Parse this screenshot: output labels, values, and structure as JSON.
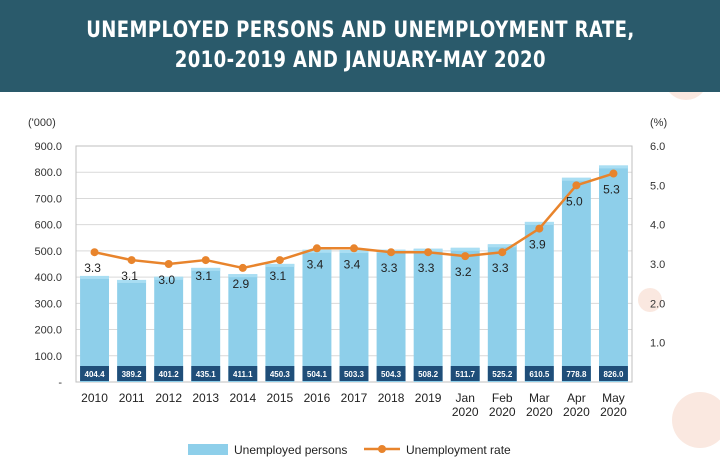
{
  "chart_data": {
    "type": "bar",
    "title": "UNEMPLOYED PERSONS AND UNEMPLOYMENT RATE,",
    "subtitle": "2010-2019 AND JANUARY-MAY 2020",
    "y_unit_left": "('000)",
    "y_unit_right": "(%)",
    "left_ticks": [
      "900.0",
      "800.0",
      "700.0",
      "600.0",
      "500.0",
      "400.0",
      "300.0",
      "200.0",
      "100.0",
      "-"
    ],
    "right_ticks": [
      "6.0",
      "5.0",
      "4.0",
      "3.0",
      "2.0",
      "1.0"
    ],
    "ylim": [
      0,
      900
    ],
    "y2lim": [
      0,
      6
    ],
    "categories": [
      [
        "2010"
      ],
      [
        "2011"
      ],
      [
        "2012"
      ],
      [
        "2013"
      ],
      [
        "2014"
      ],
      [
        "2015"
      ],
      [
        "2016"
      ],
      [
        "2017"
      ],
      [
        "2018"
      ],
      [
        "2019"
      ],
      [
        "Jan",
        "2020"
      ],
      [
        "Feb",
        "2020"
      ],
      [
        "Mar",
        "2020"
      ],
      [
        "Apr",
        "2020"
      ],
      [
        "May",
        "2020"
      ]
    ],
    "series": [
      {
        "name": "Unemployed persons",
        "type": "bar",
        "color": "#8ecfea",
        "values": [
          404.4,
          389.2,
          401.2,
          435.1,
          411.1,
          450.3,
          504.1,
          503.3,
          504.3,
          508.2,
          511.7,
          525.2,
          610.5,
          778.8,
          826.0
        ],
        "labels": [
          "404.4",
          "389.2",
          "401.2",
          "435.1",
          "411.1",
          "450.3",
          "504.1",
          "503.3",
          "504.3",
          "508.2",
          "511.7",
          "525.2",
          "610.5",
          "778.8",
          "826.0"
        ]
      },
      {
        "name": "Unemployment rate",
        "type": "line",
        "color": "#e8842c",
        "axis": "right",
        "values": [
          3.3,
          3.1,
          3.0,
          3.1,
          2.9,
          3.1,
          3.4,
          3.4,
          3.3,
          3.3,
          3.2,
          3.3,
          3.9,
          5.0,
          5.3
        ],
        "labels": [
          "3.3",
          "3.1",
          "3.0",
          "3.1",
          "2.9",
          "3.1",
          "3.4",
          "3.4",
          "3.3",
          "3.3",
          "3.2",
          "3.3",
          "3.9",
          "5.0",
          "5.3"
        ]
      }
    ],
    "grid": true,
    "legend_position": "bottom-center",
    "colors": {
      "banner": "#2a5a6b",
      "value_strip": "#1f4e79",
      "bar_top": "#a9def3",
      "grid": "#d9d9d9",
      "decor": "#f6d5c6"
    }
  }
}
